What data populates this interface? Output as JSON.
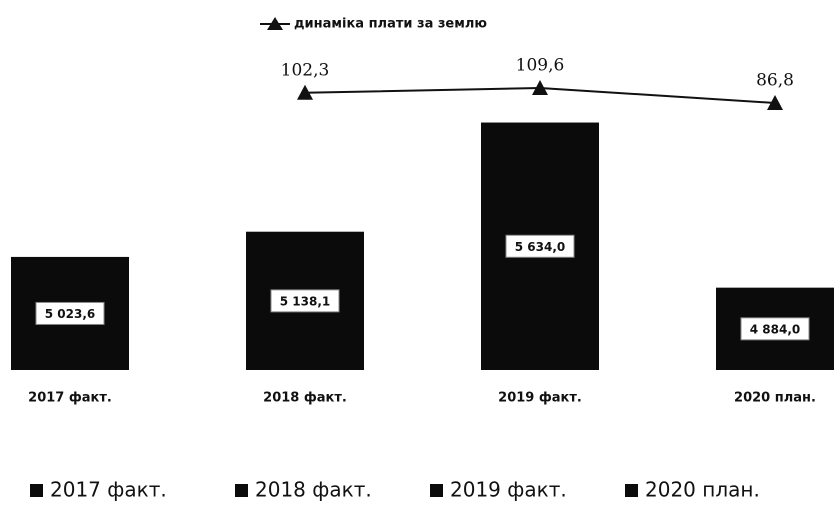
{
  "chart_data": {
    "type": "bar",
    "categories": [
      "2017 факт.",
      "2018 факт.",
      "2019 факт.",
      "2020 план."
    ],
    "values": [
      5023.6,
      5138.1,
      5634.0,
      4884.0
    ],
    "value_labels": [
      "5 023,6",
      "5 138,1",
      "5 634,0",
      "4 884,0"
    ],
    "color": "#0b0b0b",
    "ylim": [
      4510,
      5918
    ],
    "y2lim": [
      -318,
      152
    ],
    "series": [
      {
        "name": "динаміка плати за землю",
        "color": "#111111",
        "axis": "y2",
        "values": [
          null,
          102.3,
          109.6,
          86.8
        ],
        "value_labels": [
          null,
          "102,3",
          "109,6",
          "86,8"
        ]
      }
    ],
    "legend": "bottom"
  }
}
